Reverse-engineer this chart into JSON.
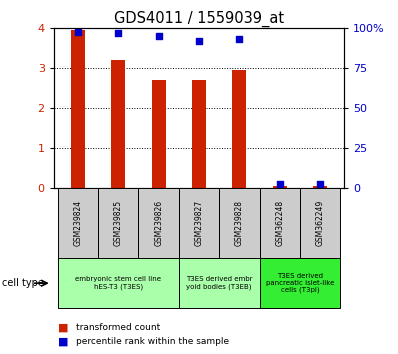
{
  "title": "GDS4011 / 1559039_at",
  "samples": [
    "GSM239824",
    "GSM239825",
    "GSM239826",
    "GSM239827",
    "GSM239828",
    "GSM362248",
    "GSM362249"
  ],
  "transformed_count": [
    3.95,
    3.2,
    2.7,
    2.7,
    2.95,
    0.05,
    0.05
  ],
  "percentile_rank": [
    98,
    97,
    95,
    92,
    93,
    2,
    2
  ],
  "bar_color": "#cc2200",
  "dot_color": "#0000cc",
  "ylim_left": [
    0,
    4
  ],
  "ylim_right": [
    0,
    100
  ],
  "yticks_left": [
    0,
    1,
    2,
    3,
    4
  ],
  "yticks_right": [
    0,
    25,
    50,
    75,
    100
  ],
  "ytick_labels_right": [
    "0",
    "25",
    "50",
    "75",
    "100%"
  ],
  "group_spans": [
    {
      "start": 0,
      "end": 2,
      "label": "embryonic stem cell line\nhES-T3 (T3ES)",
      "color": "#aaffaa"
    },
    {
      "start": 3,
      "end": 4,
      "label": "T3ES derived embr\nyoid bodies (T3EB)",
      "color": "#aaffaa"
    },
    {
      "start": 5,
      "end": 6,
      "label": "T3ES derived\npancreatic islet-like\ncells (T3pi)",
      "color": "#33ee33"
    }
  ],
  "legend_transformed": "transformed count",
  "legend_percentile": "percentile rank within the sample",
  "cell_type_label": "cell type",
  "bar_color_left": "#cc2200",
  "tick_color_left": "#cc2200",
  "tick_color_right": "#0000cc",
  "sample_box_color": "#cccccc",
  "bar_width": 0.35
}
